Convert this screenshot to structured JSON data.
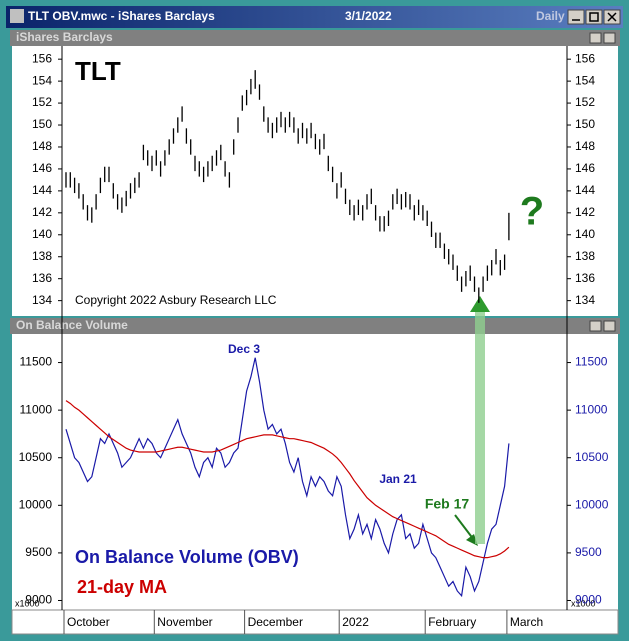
{
  "window": {
    "title": "TLT OBV.mwc - iShares Barclays",
    "date": "3/1/2022",
    "period": "Daily"
  },
  "chart_data": [
    {
      "type": "ohlc",
      "title": "iShares Barclays",
      "annotations": [
        "TLT",
        "Copyright 2022 Asbury Research LLC",
        "?"
      ],
      "color": "#000000",
      "high": [
        145.7,
        145.7,
        145.2,
        144.7,
        143.7,
        142.7,
        142.5,
        143.7,
        145.2,
        146.2,
        146.2,
        144.7,
        143.7,
        143.4,
        144,
        144.7,
        145.2,
        145.7,
        148.2,
        147.7,
        147.2,
        147.7,
        146.7,
        147.7,
        148.7,
        149.7,
        150.7,
        151.7,
        149.7,
        148.7,
        147.2,
        146.7,
        146.2,
        146.7,
        147.2,
        147.7,
        148.2,
        146.7,
        145.7,
        148.7,
        150.7,
        152.7,
        153.2,
        154.2,
        155,
        153.7,
        151.7,
        150.7,
        150.2,
        150.7,
        151.2,
        150.7,
        151.2,
        150.7,
        149.7,
        150.2,
        149.7,
        150.2,
        149.2,
        148.7,
        149.2,
        147.2,
        146.2,
        144.7,
        145.7,
        144.2,
        143.2,
        142.7,
        143.2,
        142.7,
        143.7,
        144.2,
        142.7,
        141.7,
        141.7,
        142.2,
        143.7,
        144.2,
        143.7,
        143.9,
        143.7,
        142.7,
        143.2,
        142.7,
        142.2,
        141.2,
        140.2,
        140.2,
        139.2,
        138.7,
        138.2,
        137.2,
        136.2,
        136.7,
        137.2,
        136.2,
        135.2,
        136.2,
        137.2,
        137.7,
        138.7,
        137.7,
        138.2,
        142
      ],
      "low": [
        144.3,
        144.3,
        143.8,
        143.3,
        142.3,
        141.3,
        141.1,
        142.3,
        143.8,
        144.8,
        144.8,
        143.3,
        142.3,
        142,
        142.6,
        143.3,
        143.8,
        144.3,
        146.8,
        146.3,
        145.8,
        146.3,
        145.3,
        146.3,
        147.3,
        148.3,
        149.3,
        150.3,
        148.3,
        147.3,
        145.8,
        145.3,
        144.8,
        145.3,
        145.8,
        146.3,
        146.8,
        145.3,
        144.3,
        147.3,
        149.3,
        151.3,
        151.8,
        152.8,
        153.3,
        152.3,
        150.3,
        149.3,
        148.8,
        149.3,
        149.8,
        149.3,
        149.8,
        149.3,
        148.3,
        148.8,
        148.3,
        148.8,
        147.8,
        147.3,
        147.8,
        145.8,
        144.8,
        143.3,
        144.3,
        142.8,
        141.8,
        141.3,
        141.8,
        141.3,
        142.3,
        142.8,
        141.3,
        140.3,
        140.3,
        140.8,
        142.3,
        142.8,
        142.3,
        142.5,
        142.3,
        141.3,
        141.8,
        141.3,
        140.8,
        139.8,
        138.8,
        138.8,
        137.8,
        137.3,
        136.8,
        135.8,
        134.8,
        135.3,
        135.8,
        134.8,
        133.8,
        134.8,
        135.8,
        136.3,
        137.3,
        136.3,
        136.8,
        139.5
      ],
      "ylim": [
        132.6,
        157.2
      ],
      "yticks": [
        134,
        136,
        138,
        140,
        142,
        144,
        146,
        148,
        150,
        152,
        154,
        156
      ]
    },
    {
      "type": "line",
      "title": "On Balance Volume",
      "y_unit_label": "x1000",
      "categories": [
        "October",
        null,
        null,
        null,
        null,
        null,
        null,
        null,
        null,
        null,
        null,
        null,
        null,
        null,
        null,
        null,
        null,
        null,
        null,
        null,
        null,
        "November",
        null,
        null,
        null,
        null,
        null,
        null,
        null,
        null,
        null,
        null,
        null,
        null,
        null,
        null,
        null,
        null,
        null,
        null,
        null,
        null,
        "December",
        null,
        null,
        null,
        null,
        null,
        null,
        null,
        null,
        null,
        null,
        null,
        null,
        null,
        null,
        null,
        null,
        null,
        null,
        null,
        null,
        null,
        "2022",
        null,
        null,
        null,
        null,
        null,
        null,
        null,
        null,
        null,
        null,
        null,
        null,
        null,
        null,
        null,
        null,
        null,
        null,
        null,
        "February",
        null,
        null,
        null,
        null,
        null,
        null,
        null,
        null,
        null,
        null,
        null,
        null,
        null,
        null,
        null,
        null,
        null,
        null,
        "March"
      ],
      "series": [
        {
          "name": "On Balance Volume (OBV)",
          "color": "#1a1aa8",
          "values": [
            10800,
            10650,
            10500,
            10450,
            10350,
            10250,
            10300,
            10500,
            10700,
            10650,
            10750,
            10650,
            10550,
            10400,
            10450,
            10500,
            10600,
            10700,
            10600,
            10700,
            10650,
            10550,
            10500,
            10600,
            10700,
            10800,
            10900,
            10750,
            10650,
            10550,
            10400,
            10300,
            10450,
            10500,
            10400,
            10600,
            10550,
            10400,
            10450,
            10550,
            10600,
            10900,
            11200,
            11350,
            11550,
            11300,
            11000,
            10800,
            10850,
            10750,
            10800,
            10650,
            10450,
            10350,
            10500,
            10250,
            10100,
            10300,
            10200,
            10300,
            10250,
            10150,
            10100,
            10300,
            10200,
            9900,
            9650,
            9750,
            9900,
            9700,
            9800,
            9650,
            9850,
            9750,
            9600,
            9500,
            9700,
            9850,
            9900,
            9650,
            9700,
            9550,
            9600,
            9800,
            9650,
            9500,
            9450,
            9350,
            9250,
            9150,
            9200,
            9100,
            9050,
            9350,
            9250,
            9100,
            9200,
            9400,
            9600,
            9750,
            9800,
            10000,
            10200,
            10650
          ]
        },
        {
          "name": "21-day MA",
          "color": "#cc0000",
          "values": [
            11100,
            11070,
            11030,
            11000,
            10960,
            10920,
            10880,
            10840,
            10800,
            10760,
            10720,
            10690,
            10660,
            10630,
            10600,
            10580,
            10570,
            10560,
            10560,
            10560,
            10560,
            10560,
            10570,
            10580,
            10590,
            10600,
            10610,
            10610,
            10600,
            10590,
            10580,
            10570,
            10560,
            10560,
            10560,
            10570,
            10580,
            10600,
            10620,
            10640,
            10660,
            10680,
            10700,
            10710,
            10720,
            10730,
            10740,
            10740,
            10740,
            10730,
            10720,
            10710,
            10700,
            10700,
            10690,
            10680,
            10670,
            10660,
            10640,
            10620,
            10600,
            10570,
            10540,
            10500,
            10450,
            10390,
            10330,
            10260,
            10200,
            10140,
            10080,
            10040,
            10000,
            9970,
            9940,
            9910,
            9880,
            9860,
            9840,
            9820,
            9800,
            9780,
            9760,
            9740,
            9720,
            9700,
            9680,
            9650,
            9620,
            9590,
            9570,
            9550,
            9530,
            9510,
            9490,
            9470,
            9460,
            9450,
            9450,
            9460,
            9470,
            9490,
            9520,
            9560
          ]
        }
      ],
      "annotations": [
        "Dec 3",
        "Jan 21",
        "Feb 17"
      ],
      "ylim": [
        8900,
        11800
      ],
      "yticks": [
        9000,
        9500,
        10000,
        10500,
        11000,
        11500
      ]
    }
  ]
}
